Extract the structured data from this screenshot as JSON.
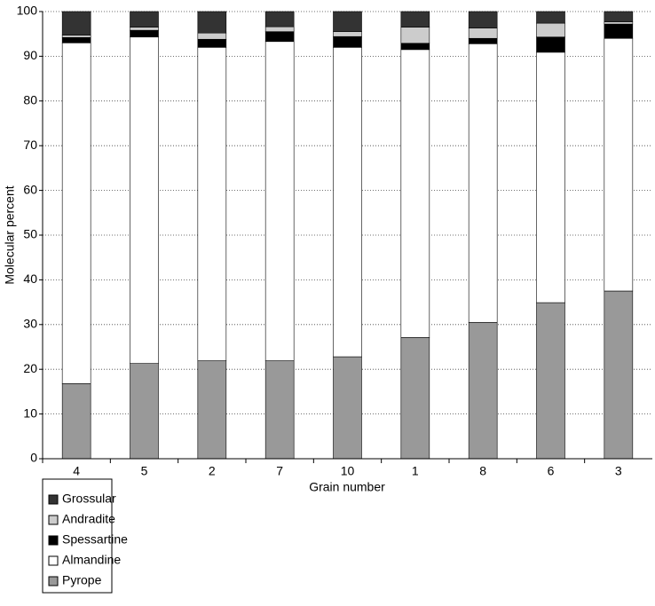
{
  "chart_data": {
    "type": "stacked_bar",
    "x_label": "Grain number",
    "y_label": "Molecular percent",
    "categories": [
      "4",
      "5",
      "2",
      "7",
      "10",
      "1",
      "8",
      "6",
      "3"
    ],
    "series": [
      {
        "name": "Pyrope",
        "color": "#999999",
        "values": [
          16.8,
          21.3,
          21.9,
          21.9,
          22.8,
          27.1,
          30.5,
          34.9,
          37.5
        ]
      },
      {
        "name": "Almandine",
        "color": "#ffffff",
        "values": [
          76.2,
          73.0,
          70.1,
          71.4,
          69.2,
          64.4,
          62.3,
          56.0,
          56.5
        ]
      },
      {
        "name": "Spessartine",
        "color": "#000000",
        "values": [
          1.2,
          1.5,
          1.8,
          2.2,
          2.4,
          1.4,
          1.2,
          3.4,
          3.2
        ]
      },
      {
        "name": "Andradite",
        "color": "#cccccc",
        "values": [
          0.5,
          0.7,
          1.4,
          1.1,
          1.1,
          3.6,
          2.3,
          3.1,
          0.5
        ]
      },
      {
        "name": "Grossular",
        "color": "#333333",
        "values": [
          5.3,
          3.5,
          4.8,
          3.4,
          4.5,
          3.5,
          3.7,
          2.6,
          2.3
        ]
      }
    ],
    "ylim": [
      0,
      100
    ],
    "yticks": [
      0,
      10,
      20,
      30,
      40,
      50,
      60,
      70,
      80,
      90,
      100
    ],
    "grid": true,
    "legend": "bottom-left"
  }
}
